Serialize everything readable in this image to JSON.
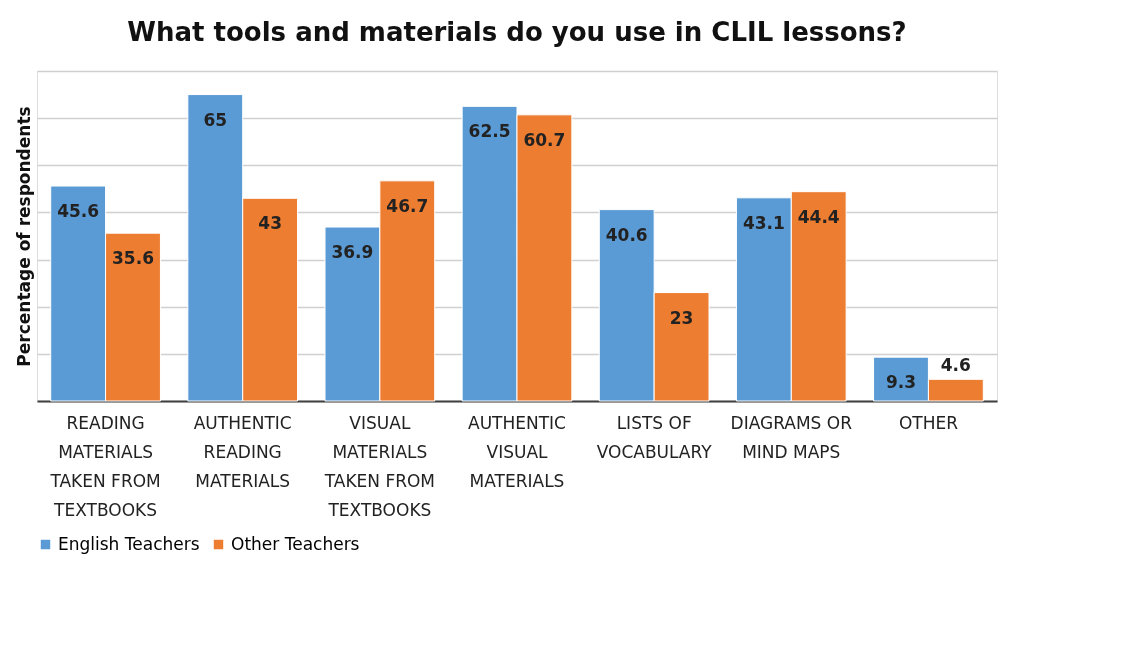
{
  "chart_data": {
    "type": "bar",
    "title": "What tools and materials do you use in CLIL lessons?",
    "ylabel": "Percentage of respondents",
    "categories": [
      "READING MATERIALS TAKEN FROM TEXTBOOKS",
      "AUTHENTIC READING MATERIALS",
      "VISUAL MATERIALS TAKEN FROM TEXTBOOKS",
      "AUTHENTIC VISUAL MATERIALS",
      "LISTS OF VOCABULARY",
      "DIAGRAMS OR MIND MAPS",
      "OTHER"
    ],
    "series": [
      {
        "name": "English Teachers",
        "color": "#5b9bd5",
        "values": [
          45.6,
          65,
          36.9,
          62.5,
          40.6,
          43.1,
          9.3
        ]
      },
      {
        "name": "Other Teachers",
        "color": "#ed7d31",
        "values": [
          35.6,
          43,
          46.7,
          60.7,
          23,
          44.4,
          4.6
        ]
      }
    ],
    "ylim": [
      0,
      70
    ],
    "yticks": [
      {
        "value": 0,
        "label": null
      },
      {
        "value": 10,
        "label": null
      },
      {
        "value": 20,
        "label": null
      },
      {
        "value": 30,
        "label": null
      },
      {
        "value": 40,
        "label": null
      },
      {
        "value": 50,
        "label": null
      },
      {
        "value": 60,
        "label": null
      },
      {
        "value": 70,
        "label": null
      }
    ],
    "tick_labels": "x",
    "grid": "y",
    "legend": "bottom",
    "data_labels": true
  }
}
